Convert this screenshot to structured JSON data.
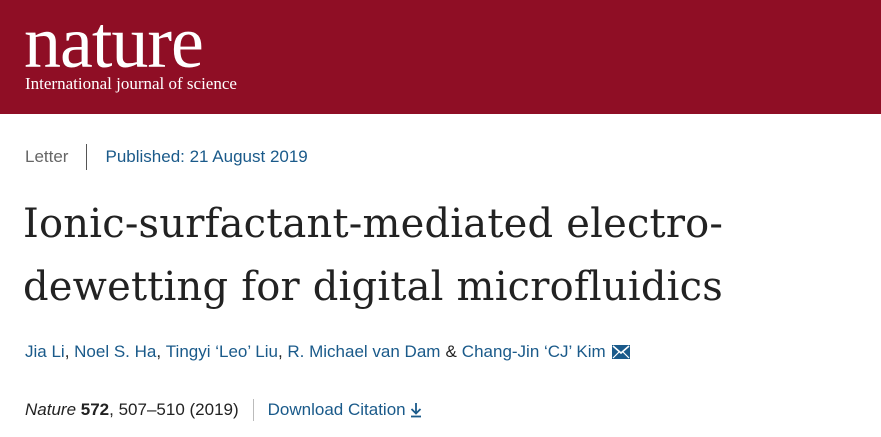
{
  "masthead": {
    "logo": "nature",
    "tagline": "International journal of science",
    "color": "#8f0e25"
  },
  "meta": {
    "article_type": "Letter",
    "published": "Published: 21 August 2019"
  },
  "article": {
    "title_line1": "Ionic-surfactant-mediated electro-",
    "title_line2": "dewetting for digital microfluidics"
  },
  "authors": {
    "list": [
      "Jia Li",
      "Noel S. Ha",
      "Tingyi ‘Leo’ Liu",
      "R. Michael van Dam",
      "Chang-Jin ‘CJ’ Kim"
    ],
    "separator": ", ",
    "ampersand": "&",
    "icon": "mail-icon"
  },
  "citation": {
    "journal": "Nature",
    "volume": "572",
    "pages_year": ", 507–510 (2019)",
    "download_label": "Download Citation",
    "download_icon": "download-icon"
  },
  "colors": {
    "link": "#1a5a8a",
    "text": "#222222"
  }
}
